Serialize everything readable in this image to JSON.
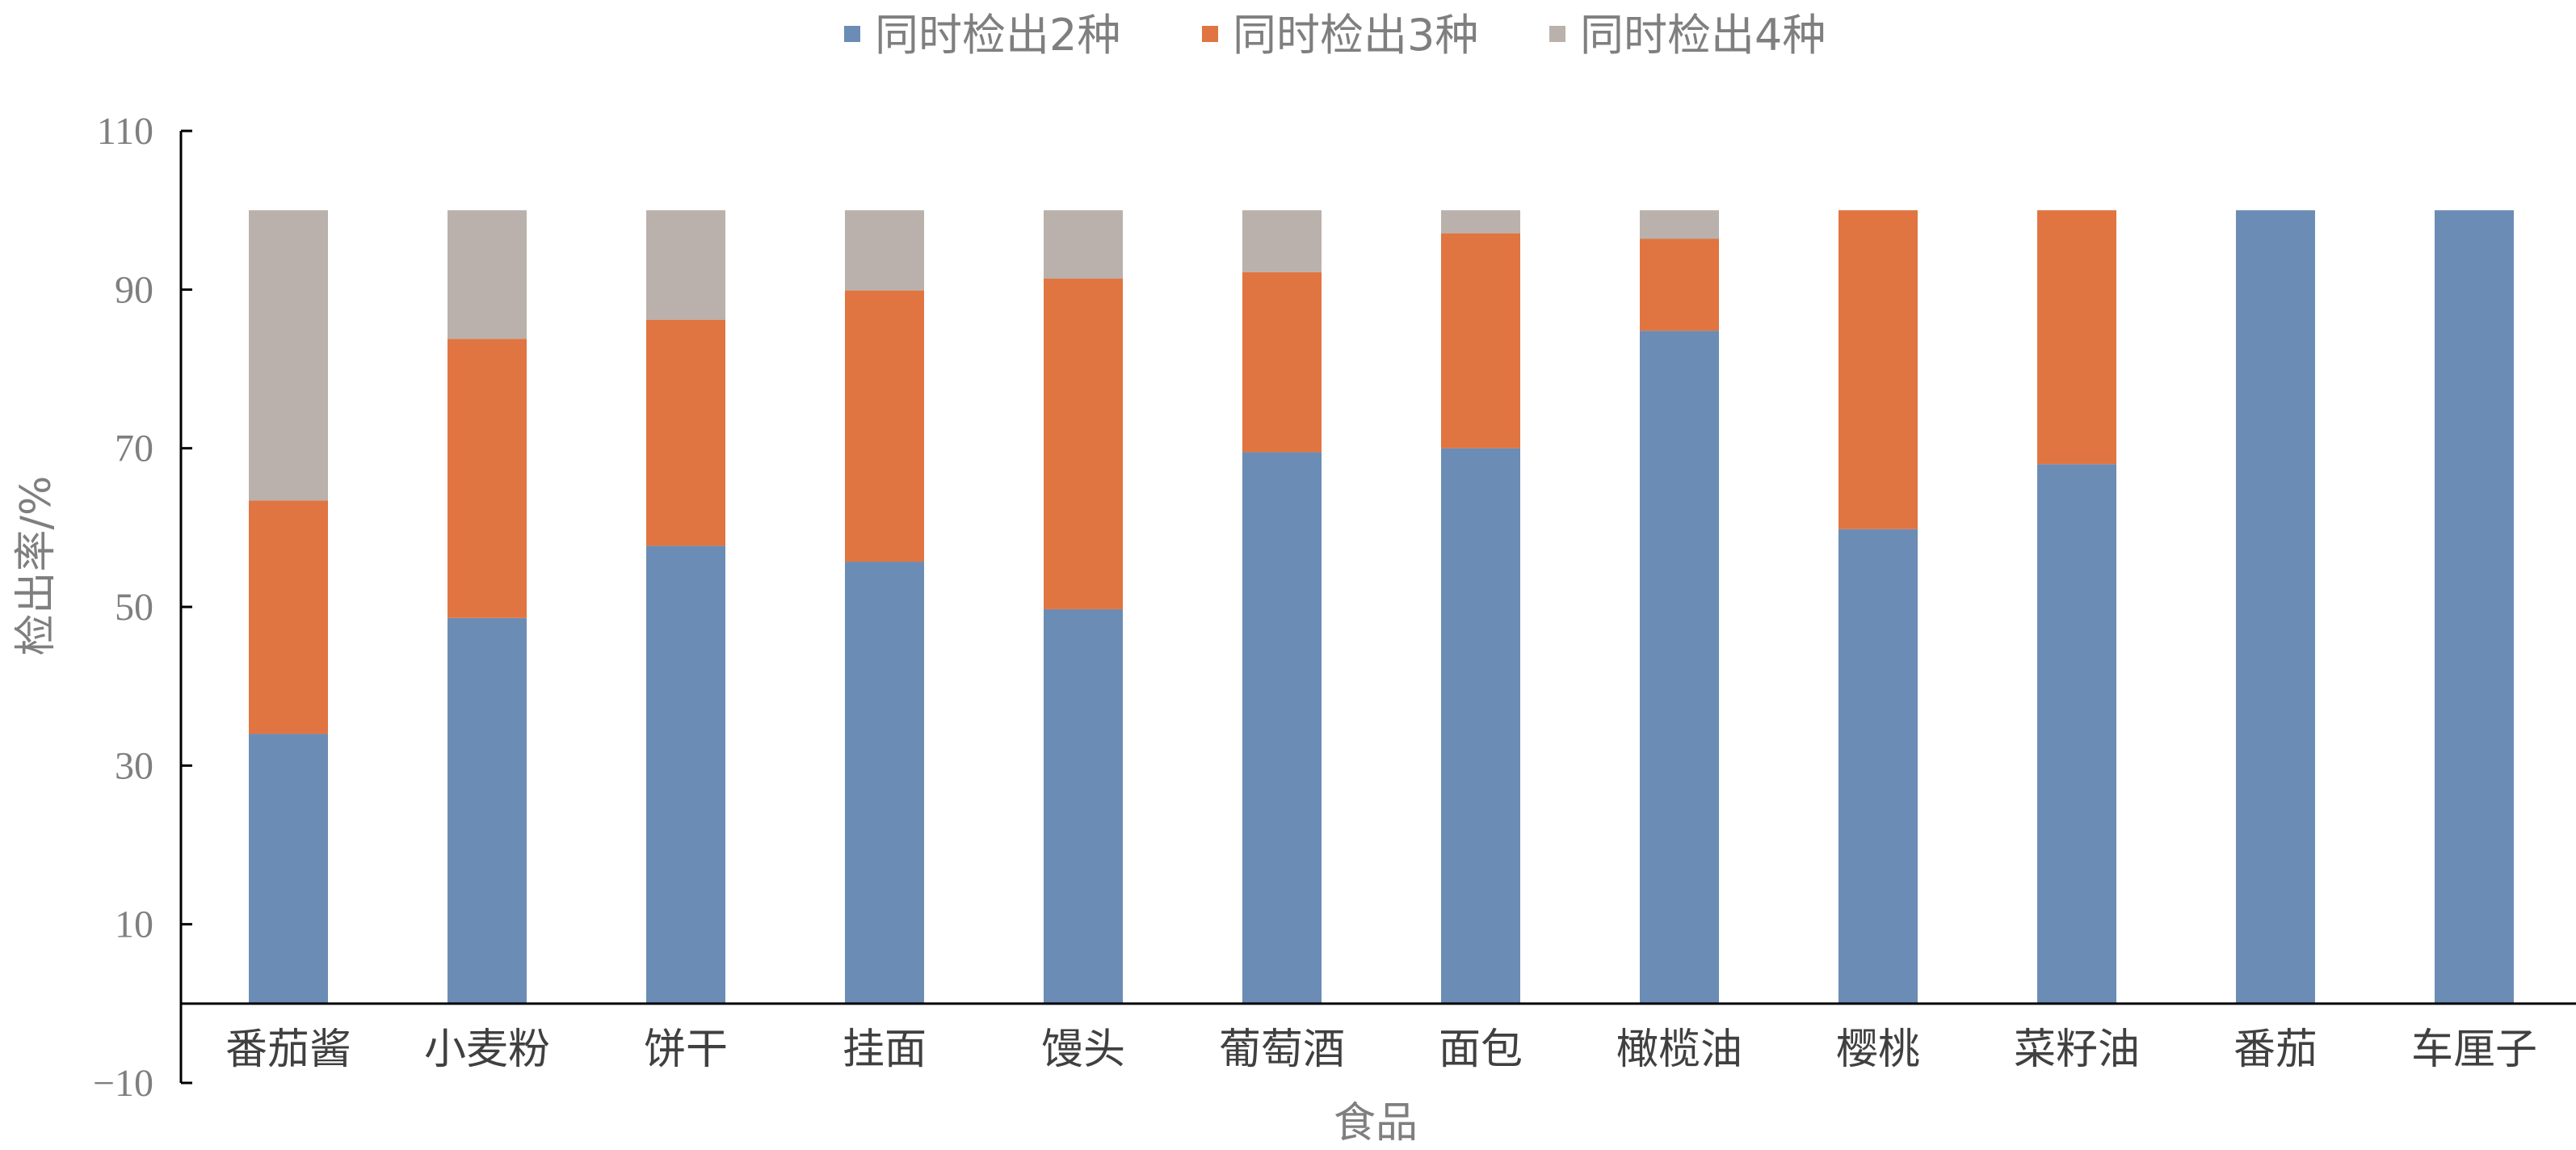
{
  "chart_data": {
    "type": "bar",
    "stacked": true,
    "categories": [
      "番茄酱",
      "小麦粉",
      "饼干",
      "挂面",
      "馒头",
      "葡萄酒",
      "面包",
      "橄榄油",
      "樱桃",
      "菜籽油",
      "番茄",
      "车厘子"
    ],
    "series": [
      {
        "name": "同时检出2种",
        "color": "#6b8cb5",
        "values": [
          34,
          48.6,
          57.7,
          55.7,
          49.7,
          69.5,
          70,
          84.8,
          59.8,
          68,
          100,
          100
        ]
      },
      {
        "name": "同时检出3种",
        "color": "#e07541",
        "values": [
          29.4,
          35.2,
          28.5,
          34.2,
          41.7,
          22.7,
          27.1,
          11.6,
          40.2,
          32,
          0,
          0
        ]
      },
      {
        "name": "同时检出4种",
        "color": "#bab1ac",
        "values": [
          36.6,
          16.2,
          13.8,
          10.1,
          8.6,
          7.8,
          2.9,
          3.6,
          0,
          0,
          0,
          0
        ]
      }
    ],
    "xlabel": "食品",
    "ylabel": "检出率/%",
    "ylim": [
      -10,
      110
    ],
    "yticks": [
      110,
      90,
      70,
      50,
      30,
      10,
      -10
    ],
    "ytick_labels": [
      "110",
      "90",
      "70",
      "50",
      "30",
      "10",
      "−10"
    ],
    "grid": false,
    "legend_position": "top-center"
  }
}
